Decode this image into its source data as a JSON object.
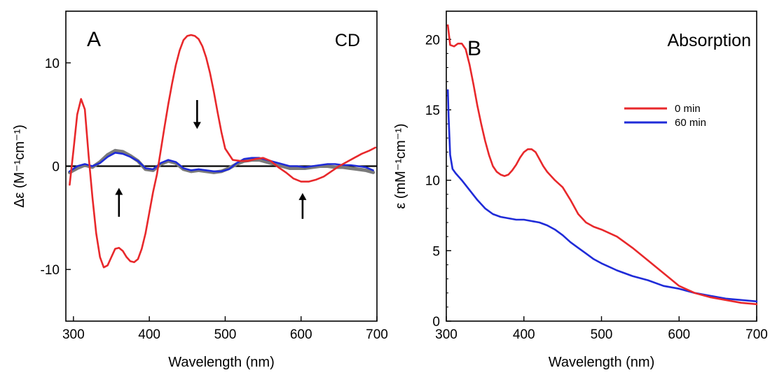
{
  "chart_data": [
    {
      "type": "line",
      "panel_label": "A",
      "title": "CD",
      "xlabel": "Wavelength (nm)",
      "ylabel": "Δε (M⁻¹cm⁻¹)",
      "xlim": [
        290,
        700
      ],
      "ylim": [
        -15,
        15
      ],
      "xticks": [
        300,
        400,
        500,
        600,
        700
      ],
      "yticks": [
        -10,
        0,
        10
      ],
      "zero_line": true,
      "grid": false,
      "colors": {
        "red": "#e8282b",
        "blue": "#1f2bd8",
        "gray": "#7a7a7a"
      },
      "series": [
        {
          "color": "red",
          "x": [
            295,
            300,
            305,
            310,
            315,
            320,
            325,
            330,
            335,
            340,
            345,
            350,
            355,
            360,
            365,
            370,
            375,
            380,
            385,
            390,
            395,
            400,
            405,
            410,
            415,
            420,
            425,
            430,
            435,
            440,
            445,
            450,
            455,
            460,
            465,
            470,
            475,
            480,
            485,
            490,
            495,
            500,
            510,
            520,
            530,
            540,
            550,
            560,
            570,
            580,
            590,
            600,
            610,
            620,
            630,
            640,
            650,
            660,
            670,
            680,
            690,
            698
          ],
          "y": [
            -1.8,
            1.5,
            5.0,
            6.5,
            5.5,
            1.0,
            -3.0,
            -6.5,
            -8.8,
            -9.8,
            -9.6,
            -8.8,
            -8.0,
            -7.9,
            -8.2,
            -8.8,
            -9.2,
            -9.3,
            -9.0,
            -8.0,
            -6.5,
            -4.5,
            -2.5,
            -0.8,
            1.5,
            3.8,
            6.0,
            8.0,
            9.8,
            11.2,
            12.2,
            12.6,
            12.7,
            12.6,
            12.3,
            11.6,
            10.5,
            9.0,
            7.2,
            5.2,
            3.3,
            1.7,
            0.6,
            0.5,
            0.5,
            0.7,
            0.8,
            0.5,
            -0.1,
            -0.6,
            -1.2,
            -1.5,
            -1.5,
            -1.3,
            -1.0,
            -0.5,
            0.0,
            0.4,
            0.8,
            1.2,
            1.5,
            1.8
          ]
        },
        {
          "color": "blue",
          "x": [
            295,
            305,
            315,
            325,
            335,
            345,
            355,
            365,
            375,
            385,
            395,
            405,
            415,
            425,
            435,
            445,
            455,
            465,
            475,
            485,
            495,
            505,
            515,
            525,
            535,
            545,
            555,
            565,
            575,
            585,
            595,
            605,
            615,
            625,
            635,
            645,
            655,
            665,
            675,
            685,
            695
          ],
          "y": [
            -0.5,
            0.0,
            0.2,
            0.0,
            0.3,
            0.9,
            1.3,
            1.2,
            0.9,
            0.5,
            -0.2,
            -0.3,
            0.3,
            0.6,
            0.4,
            -0.2,
            -0.4,
            -0.3,
            -0.4,
            -0.5,
            -0.5,
            -0.3,
            0.3,
            0.7,
            0.8,
            0.8,
            0.6,
            0.4,
            0.2,
            0.0,
            0.0,
            -0.1,
            0.0,
            0.1,
            0.2,
            0.2,
            0.1,
            0.1,
            0.0,
            -0.1,
            -0.4
          ]
        },
        {
          "color": "gray",
          "x": [
            295,
            305,
            315,
            325,
            335,
            345,
            355,
            365,
            375,
            385,
            395,
            405,
            415,
            425,
            435,
            445,
            455,
            465,
            475,
            485,
            495,
            505,
            515,
            525,
            535,
            545,
            555,
            565,
            575,
            585,
            595,
            605,
            615,
            625,
            635,
            645,
            655,
            665,
            675,
            685,
            695
          ],
          "y": [
            -0.6,
            -0.2,
            0.1,
            -0.1,
            0.4,
            1.1,
            1.5,
            1.4,
            1.0,
            0.5,
            -0.3,
            -0.4,
            0.2,
            0.5,
            0.3,
            -0.3,
            -0.5,
            -0.4,
            -0.5,
            -0.6,
            -0.5,
            -0.2,
            0.2,
            0.5,
            0.6,
            0.6,
            0.4,
            0.2,
            0.0,
            -0.2,
            -0.2,
            -0.2,
            -0.1,
            0.0,
            0.0,
            -0.1,
            -0.1,
            -0.2,
            -0.3,
            -0.4,
            -0.6
          ]
        }
      ],
      "arrows": [
        {
          "x": 463,
          "y_from": 6.4,
          "y_to": 3.6,
          "direction": "down"
        },
        {
          "x": 360,
          "y_from": -4.9,
          "y_to": -2.1,
          "direction": "up"
        },
        {
          "x": 602,
          "y_from": -5.1,
          "y_to": -2.6,
          "direction": "up"
        }
      ]
    },
    {
      "type": "line",
      "panel_label": "B",
      "title": "Absorption",
      "xlabel": "Wavelength (nm)",
      "ylabel": "ε (mM⁻¹cm⁻¹)",
      "xlim": [
        300,
        700
      ],
      "ylim": [
        0,
        22
      ],
      "xticks": [
        300,
        400,
        500,
        600,
        700
      ],
      "yticks": [
        0,
        5,
        10,
        15,
        20
      ],
      "grid": false,
      "legend": "top-right",
      "colors": {
        "red": "#e8282b",
        "blue": "#1f2bd8"
      },
      "series": [
        {
          "name": "60 min",
          "color": "blue",
          "x": [
            302,
            303,
            305,
            308,
            312,
            320,
            330,
            340,
            350,
            360,
            370,
            380,
            390,
            400,
            410,
            420,
            430,
            440,
            450,
            460,
            470,
            480,
            490,
            500,
            520,
            540,
            560,
            580,
            600,
            620,
            640,
            660,
            680,
            700
          ],
          "y": [
            16.4,
            14.5,
            11.8,
            10.8,
            10.5,
            10.0,
            9.3,
            8.6,
            8.0,
            7.6,
            7.4,
            7.3,
            7.2,
            7.2,
            7.1,
            7.0,
            6.8,
            6.5,
            6.1,
            5.6,
            5.2,
            4.8,
            4.4,
            4.1,
            3.6,
            3.2,
            2.9,
            2.5,
            2.3,
            2.0,
            1.8,
            1.6,
            1.5,
            1.4
          ]
        },
        {
          "name": "0 min",
          "color": "red",
          "x": [
            302,
            305,
            310,
            315,
            320,
            325,
            330,
            335,
            340,
            345,
            350,
            355,
            360,
            365,
            370,
            375,
            380,
            385,
            390,
            395,
            400,
            405,
            410,
            415,
            420,
            425,
            430,
            435,
            440,
            450,
            460,
            470,
            480,
            490,
            500,
            520,
            540,
            560,
            580,
            600,
            620,
            640,
            660,
            680,
            700
          ],
          "y": [
            21.0,
            19.6,
            19.5,
            19.7,
            19.7,
            19.3,
            18.2,
            16.8,
            15.3,
            14.0,
            12.8,
            11.8,
            11.0,
            10.6,
            10.4,
            10.3,
            10.4,
            10.7,
            11.1,
            11.6,
            12.0,
            12.2,
            12.2,
            12.0,
            11.5,
            11.0,
            10.6,
            10.3,
            10.0,
            9.5,
            8.6,
            7.6,
            7.0,
            6.7,
            6.5,
            6.0,
            5.2,
            4.3,
            3.4,
            2.5,
            2.0,
            1.7,
            1.5,
            1.3,
            1.2
          ]
        }
      ]
    }
  ]
}
